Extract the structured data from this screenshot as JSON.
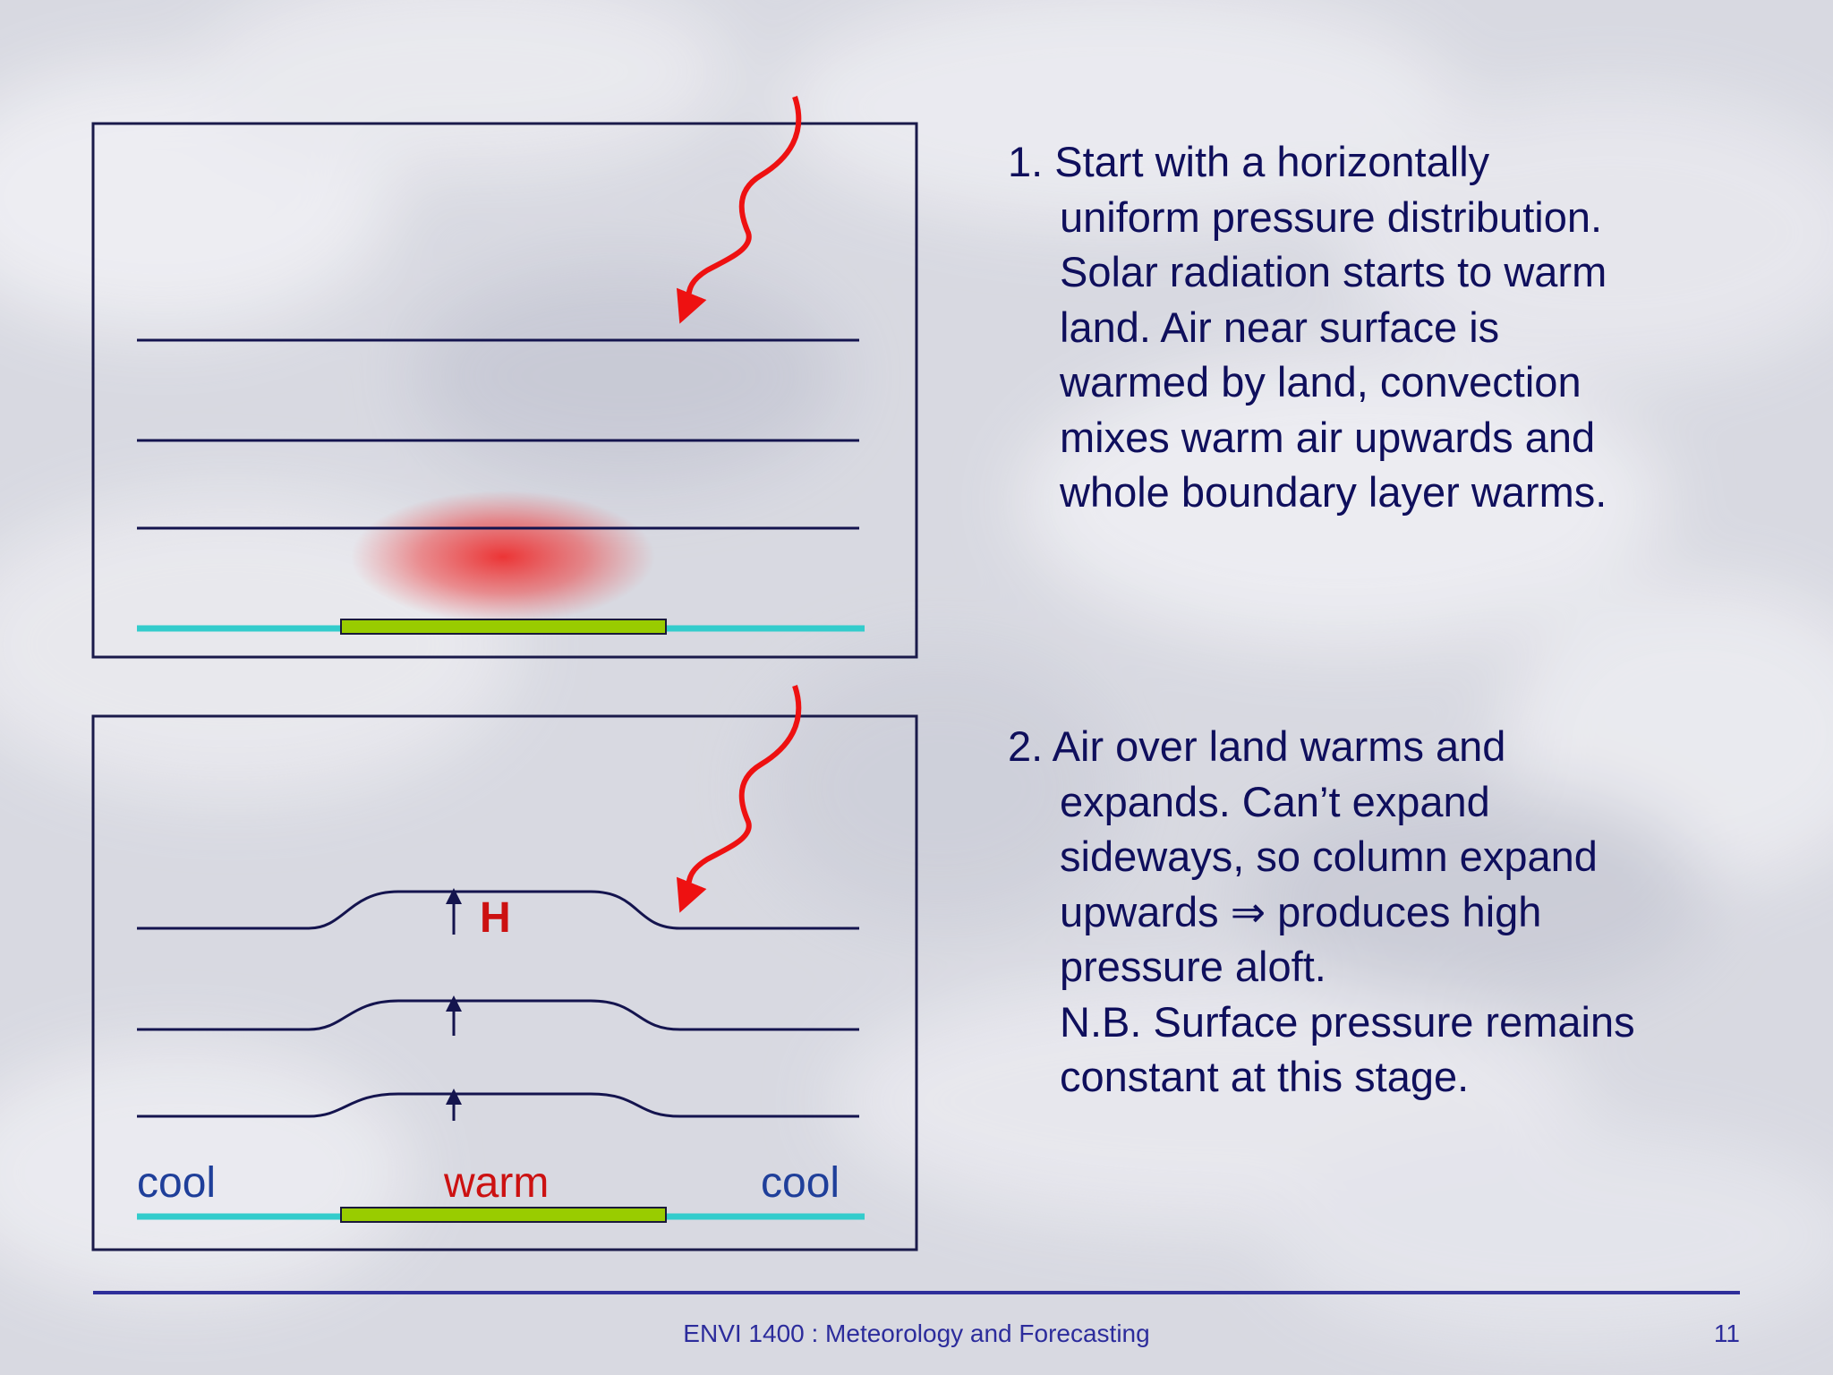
{
  "steps": [
    {
      "lines": [
        "1. Start with a horizontally",
        "uniform pressure distribution.",
        "Solar radiation starts to warm",
        "land. Air near surface is",
        "warmed by land, convection",
        "mixes warm air upwards and",
        "whole boundary layer warms."
      ]
    },
    {
      "lines": [
        "2. Air over land warms and",
        "expands. Can’t expand",
        "sideways, so column expand",
        "upwards ⇒ produces high",
        "pressure aloft.",
        "N.B. Surface pressure remains",
        "constant at this stage."
      ]
    }
  ],
  "diagram": {
    "label_high": "H",
    "label_cool_left": "cool",
    "label_warm": "warm",
    "label_cool_right": "cool",
    "colors": {
      "frame": "#1a1a4a",
      "isobar": "#14144e",
      "radiation": "#ee1111",
      "sea": "#33cccc",
      "land": "#99cc00",
      "warm_glow": "#ee2222"
    },
    "icons": [
      "solar-radiation-arrow-icon",
      "up-arrow-icon"
    ]
  },
  "footer": {
    "course": "ENVI 1400 : Meteorology and Forecasting",
    "page": "11"
  }
}
